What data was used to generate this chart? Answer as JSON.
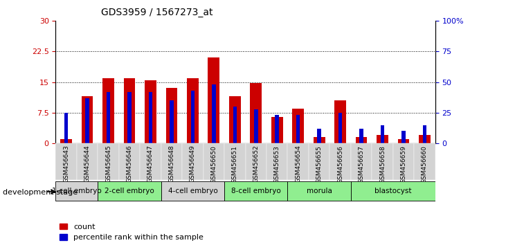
{
  "title": "GDS3959 / 1567273_at",
  "samples": [
    "GSM456643",
    "GSM456644",
    "GSM456645",
    "GSM456646",
    "GSM456647",
    "GSM456648",
    "GSM456649",
    "GSM456650",
    "GSM456651",
    "GSM456652",
    "GSM456653",
    "GSM456654",
    "GSM456655",
    "GSM456656",
    "GSM456657",
    "GSM456658",
    "GSM456659",
    "GSM456660"
  ],
  "count_values": [
    1.0,
    11.5,
    16.0,
    16.0,
    15.5,
    13.5,
    16.0,
    21.0,
    11.5,
    14.8,
    6.5,
    8.5,
    1.5,
    10.5,
    1.5,
    2.0,
    1.0,
    2.0
  ],
  "percentile_values": [
    25,
    37,
    42,
    42,
    42,
    35,
    43,
    48,
    30,
    28,
    23,
    23,
    12,
    25,
    12,
    15,
    10,
    15
  ],
  "stages": [
    {
      "label": "1-cell embryo",
      "start": 0,
      "end": 2,
      "color": "#d3d3d3"
    },
    {
      "label": "2-cell embryo",
      "start": 2,
      "end": 5,
      "color": "#90ee90"
    },
    {
      "label": "4-cell embryo",
      "start": 5,
      "end": 8,
      "color": "#d3d3d3"
    },
    {
      "label": "8-cell embryo",
      "start": 8,
      "end": 11,
      "color": "#90ee90"
    },
    {
      "label": "morula",
      "start": 11,
      "end": 14,
      "color": "#90ee90"
    },
    {
      "label": "blastocyst",
      "start": 14,
      "end": 18,
      "color": "#90ee90"
    }
  ],
  "ylim_left": [
    0,
    30
  ],
  "ylim_right": [
    0,
    100
  ],
  "yticks_left": [
    0,
    7.5,
    15,
    22.5,
    30
  ],
  "ytick_labels_left": [
    "0",
    "7.5",
    "15",
    "22.5",
    "30"
  ],
  "yticks_right": [
    0,
    25,
    50,
    75,
    100
  ],
  "ytick_labels_right": [
    "0",
    "25",
    "50",
    "75",
    "100%"
  ],
  "count_color": "#cc0000",
  "percentile_color": "#0000cc",
  "grid_yticks": [
    7.5,
    15,
    22.5
  ]
}
